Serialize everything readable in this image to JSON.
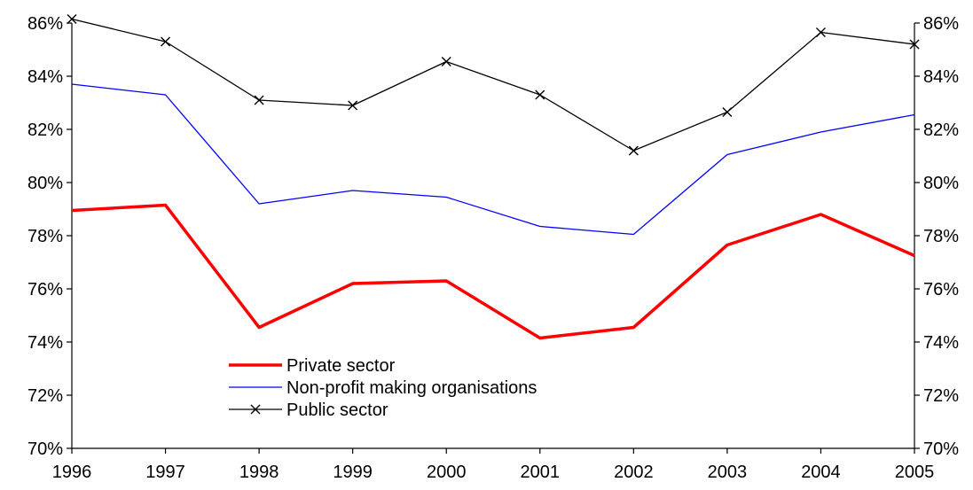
{
  "chart_data": {
    "type": "line",
    "title": "",
    "xlabel": "",
    "ylabel": "",
    "x": [
      "1996",
      "1997",
      "1998",
      "1999",
      "2000",
      "2001",
      "2002",
      "2003",
      "2004",
      "2005"
    ],
    "ylim": [
      70,
      86
    ],
    "yticks": [
      70,
      72,
      74,
      76,
      78,
      80,
      82,
      84,
      86
    ],
    "y_tick_labels": [
      "70%",
      "72%",
      "74%",
      "76%",
      "78%",
      "80%",
      "82%",
      "84%",
      "86%"
    ],
    "y_axis_right_mirrored": true,
    "grid": false,
    "legend_position": "lower-left",
    "series": [
      {
        "name": "Private sector",
        "color": "#ff0000",
        "line_style": "thick",
        "marker": "none",
        "values": [
          78.95,
          79.15,
          74.55,
          76.2,
          76.3,
          74.15,
          74.55,
          77.65,
          78.8,
          77.25
        ]
      },
      {
        "name": "Non-profit making organisations",
        "color": "#0000ff",
        "line_style": "thin",
        "marker": "none",
        "values": [
          83.7,
          83.3,
          79.2,
          79.7,
          79.45,
          78.35,
          78.05,
          81.05,
          81.9,
          82.55
        ]
      },
      {
        "name": "Public sector",
        "color": "#000000",
        "line_style": "thin",
        "marker": "x",
        "values": [
          86.15,
          85.3,
          83.1,
          82.9,
          84.55,
          83.3,
          81.2,
          82.65,
          85.65,
          85.2
        ]
      }
    ]
  }
}
